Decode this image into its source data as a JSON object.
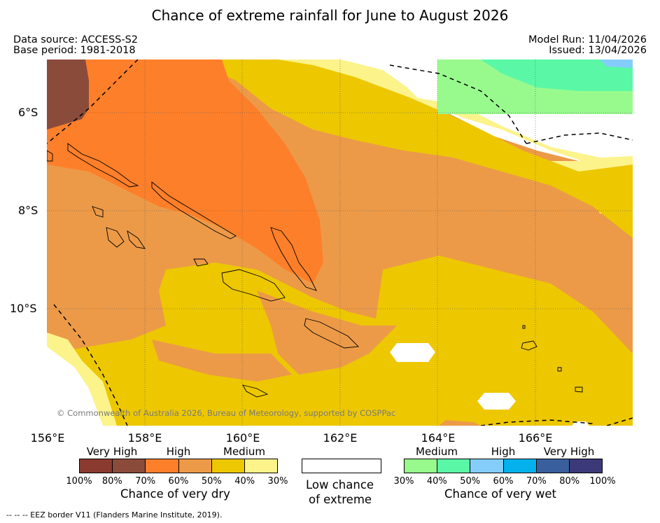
{
  "title": "Chance of extreme rainfall for June to August 2026",
  "header": {
    "data_source": "Data source: ACCESS-S2",
    "base_period": "Base period: 1981-2018",
    "model_run": "Model Run: 11/04/2026",
    "issued": "Issued: 13/04/2026"
  },
  "map": {
    "lat_labels": [
      "6°S",
      "8°S",
      "10°S"
    ],
    "lon_labels": [
      "156°E",
      "158°E",
      "160°E",
      "162°E",
      "164°E",
      "166°E"
    ],
    "copyright": "© Commonwealth of Australia 2026, Bureau of Meteorology, supported by COSPPac"
  },
  "legend": {
    "dry": {
      "categories": [
        "Very High",
        "High",
        "Medium"
      ],
      "colors": [
        "#8b3a2f",
        "#8b4b3a",
        "#fd7f2a",
        "#ec9a48",
        "#edc700",
        "#fcf38a"
      ],
      "ticks": [
        "100%",
        "80%",
        "70%",
        "60%",
        "50%",
        "40%",
        "30%"
      ],
      "caption": "Chance of very dry"
    },
    "low": {
      "line1": "Low chance",
      "line2": "of extreme"
    },
    "wet": {
      "categories": [
        "Medium",
        "High",
        "Very High"
      ],
      "colors": [
        "#98fa8d",
        "#5af8a6",
        "#84cdfa",
        "#05b1ec",
        "#395f9c",
        "#3c3979"
      ],
      "ticks": [
        "30%",
        "40%",
        "50%",
        "60%",
        "70%",
        "80%",
        "100%"
      ],
      "caption": "Chance of very wet"
    }
  },
  "footer": "--  --  -- EEZ border V11 (Flanders Marine Institute, 2019)."
}
